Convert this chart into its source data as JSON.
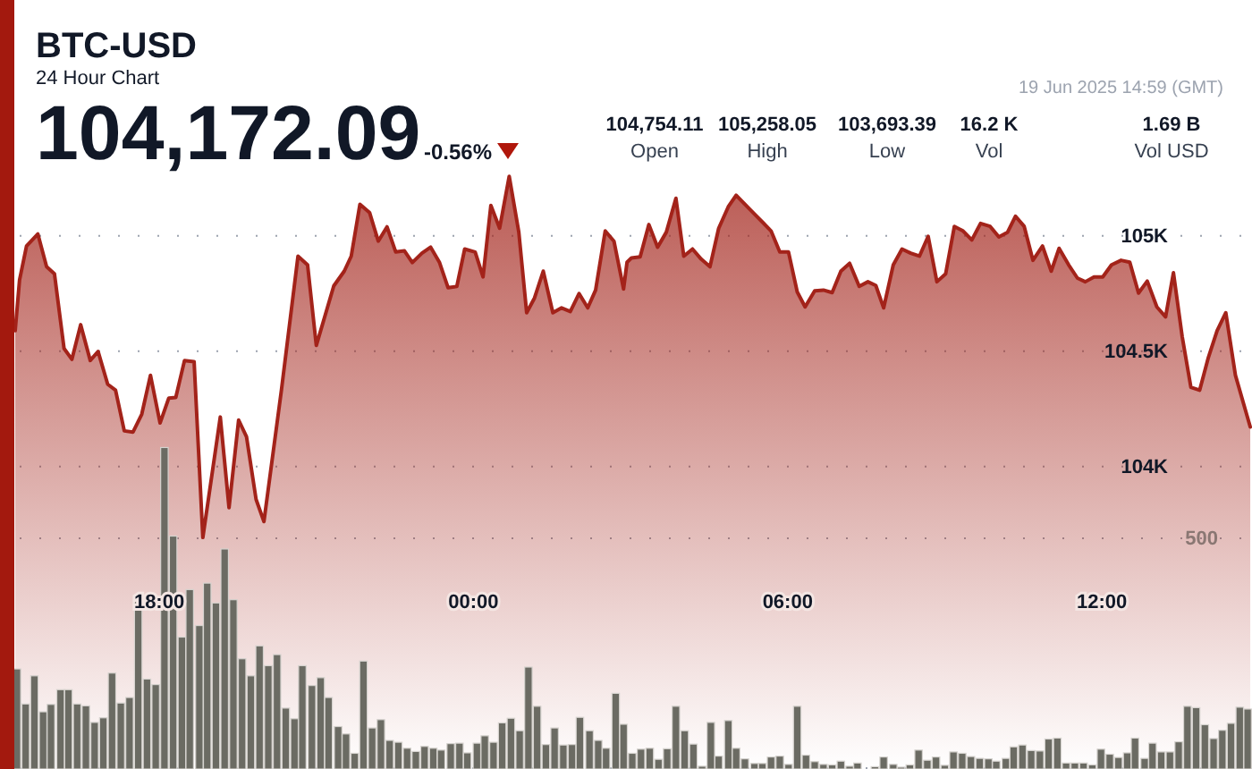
{
  "chart_data": {
    "type": "area",
    "title": "BTC-USD",
    "subtitle": "24 Hour Chart",
    "annotations": [
      "104,172.09",
      "-0.56%",
      "104,754.11",
      "Open",
      "105,258.05",
      "High",
      "103,693.39",
      "Low",
      "16.2 K",
      "Vol",
      "1.69 B",
      "Vol USD",
      "19 Jun 2025 14:59 (GMT)"
    ],
    "xlim": [
      "2025-06-18T15:14",
      "2025-06-19T14:52"
    ],
    "xticks": [
      {
        "value": "2025-06-18T18:00",
        "label": "18:00"
      },
      {
        "value": "2025-06-19T00:00",
        "label": "00:00"
      },
      {
        "value": "2025-06-19T06:00",
        "label": "06:00"
      },
      {
        "value": "2025-06-19T12:00",
        "label": "12:00"
      }
    ],
    "ylim": [
      102690,
      105340
    ],
    "yticks": [
      {
        "value": 104000,
        "label": "104K"
      },
      {
        "value": 104500,
        "label": "104.5K"
      },
      {
        "value": 105000,
        "label": "105K"
      }
    ],
    "y2lim": [
      0,
      1326
    ],
    "y2ticks": [
      {
        "value": 0,
        "label": null
      },
      500
    ],
    "grid": "y",
    "series": [
      {
        "color": "#a3231a",
        "x": [
          "2025-06-18T15:15",
          "2025-06-18T15:20",
          "2025-06-18T15:28",
          "2025-06-18T15:41",
          "2025-06-18T15:51",
          "2025-06-18T16:00",
          "2025-06-18T16:11",
          "2025-06-18T16:20",
          "2025-06-18T16:30",
          "2025-06-18T16:41",
          "2025-06-18T16:50",
          "2025-06-18T17:01",
          "2025-06-18T17:10",
          "2025-06-18T17:20",
          "2025-06-18T17:30",
          "2025-06-18T17:40",
          "2025-06-18T17:50",
          "2025-06-18T18:01",
          "2025-06-18T18:11",
          "2025-06-18T18:19",
          "2025-06-18T18:29",
          "2025-06-18T18:40",
          "2025-06-18T18:50",
          "2025-06-18T19:10",
          "2025-06-18T19:20",
          "2025-06-18T19:31",
          "2025-06-18T19:40",
          "2025-06-18T19:51",
          "2025-06-18T20:00",
          "2025-06-18T20:20",
          "2025-06-18T20:39",
          "2025-06-18T20:50",
          "2025-06-18T21:00",
          "2025-06-18T21:20",
          "2025-06-18T21:32",
          "2025-06-18T21:40",
          "2025-06-18T21:50",
          "2025-06-18T22:01",
          "2025-06-18T22:11",
          "2025-06-18T22:21",
          "2025-06-18T22:31",
          "2025-06-18T22:41",
          "2025-06-18T22:50",
          "2025-06-18T23:01",
          "2025-06-18T23:11",
          "2025-06-18T23:21",
          "2025-06-18T23:31",
          "2025-06-18T23:41",
          "2025-06-18T23:50",
          "2025-06-19T00:02",
          "2025-06-19T00:11",
          "2025-06-19T00:20",
          "2025-06-19T00:30",
          "2025-06-19T00:41",
          "2025-06-19T00:52",
          "2025-06-19T01:01",
          "2025-06-19T01:10",
          "2025-06-19T01:20",
          "2025-06-19T01:31",
          "2025-06-19T01:41",
          "2025-06-19T01:51",
          "2025-06-19T02:01",
          "2025-06-19T02:11",
          "2025-06-19T02:20",
          "2025-06-19T02:31",
          "2025-06-19T02:41",
          "2025-06-19T02:52",
          "2025-06-19T02:56",
          "2025-06-19T03:01",
          "2025-06-19T03:11",
          "2025-06-19T03:21",
          "2025-06-19T03:31",
          "2025-06-19T03:41",
          "2025-06-19T03:52",
          "2025-06-19T04:01",
          "2025-06-19T04:11",
          "2025-06-19T04:21",
          "2025-06-19T04:31",
          "2025-06-19T04:41",
          "2025-06-19T04:52",
          "2025-06-19T05:01",
          "2025-06-19T05:11",
          "2025-06-19T05:21",
          "2025-06-19T05:31",
          "2025-06-19T05:41",
          "2025-06-19T05:51",
          "2025-06-19T06:01",
          "2025-06-19T06:11",
          "2025-06-19T06:20",
          "2025-06-19T06:31",
          "2025-06-19T06:41",
          "2025-06-19T06:51",
          "2025-06-19T07:01",
          "2025-06-19T07:11",
          "2025-06-19T07:22",
          "2025-06-19T07:32",
          "2025-06-19T07:41",
          "2025-06-19T07:50",
          "2025-06-19T08:01",
          "2025-06-19T08:11",
          "2025-06-19T08:21",
          "2025-06-19T08:31",
          "2025-06-19T08:41",
          "2025-06-19T08:51",
          "2025-06-19T09:01",
          "2025-06-19T09:11",
          "2025-06-19T09:21",
          "2025-06-19T09:31",
          "2025-06-19T09:41",
          "2025-06-19T09:52",
          "2025-06-19T10:02",
          "2025-06-19T10:12",
          "2025-06-19T10:21",
          "2025-06-19T10:31",
          "2025-06-19T10:41",
          "2025-06-19T10:52",
          "2025-06-19T11:02",
          "2025-06-19T11:11",
          "2025-06-19T11:22",
          "2025-06-19T11:32",
          "2025-06-19T11:41",
          "2025-06-19T11:51",
          "2025-06-19T12:01",
          "2025-06-19T12:11",
          "2025-06-19T12:22",
          "2025-06-19T12:32",
          "2025-06-19T12:42",
          "2025-06-19T12:52",
          "2025-06-19T13:03",
          "2025-06-19T13:13",
          "2025-06-19T13:22",
          "2025-06-19T13:32",
          "2025-06-19T13:42",
          "2025-06-19T13:52",
          "2025-06-19T14:02",
          "2025-06-19T14:12",
          "2025-06-19T14:22",
          "2025-06-19T14:33",
          "2025-06-19T14:50"
        ],
        "values": [
          104589,
          104809,
          104956,
          105008,
          104866,
          104835,
          104512,
          104465,
          104615,
          104460,
          104499,
          104357,
          104331,
          104155,
          104150,
          104227,
          104396,
          104189,
          104297,
          104300,
          104460,
          104455,
          103693,
          104215,
          103822,
          104202,
          104130,
          103858,
          103762,
          104331,
          104912,
          104874,
          104525,
          104783,
          104847,
          104912,
          105137,
          105101,
          104977,
          105039,
          104930,
          104935,
          104884,
          104925,
          104951,
          104886,
          104775,
          104781,
          104943,
          104930,
          104822,
          105132,
          105033,
          105258,
          105016,
          104667,
          104731,
          104847,
          104667,
          104688,
          104672,
          104750,
          104688,
          104765,
          105021,
          104977,
          104770,
          104886,
          104904,
          104909,
          105049,
          104951,
          105016,
          105163,
          104912,
          104943,
          104899,
          104866,
          105033,
          105126,
          105176,
          105137,
          105098,
          105060,
          105021,
          104930,
          104930,
          104757,
          104692,
          104762,
          104765,
          104754,
          104847,
          104881,
          104781,
          104801,
          104785,
          104688,
          104874,
          104943,
          104925,
          104912,
          104998,
          104801,
          104835,
          105041,
          105021,
          104982,
          105054,
          105041,
          104995,
          105016,
          105085,
          105041,
          104894,
          104956,
          104847,
          104946,
          104874,
          104817,
          104801,
          104822,
          104822,
          104874,
          104894,
          104886,
          104752,
          104804,
          104692,
          104649,
          104840,
          104564,
          104344,
          104331,
          104473,
          104589,
          104667,
          104396,
          104172
        ]
      },
      {
        "type": "bar",
        "axis": "y2",
        "color": "#6b6b63",
        "x": [
          "2025-06-18T15:17",
          "2025-06-18T15:27",
          "2025-06-18T15:37",
          "2025-06-18T15:47",
          "2025-06-18T15:56",
          "2025-06-18T16:07",
          "2025-06-18T16:16",
          "2025-06-18T16:26",
          "2025-06-18T16:36",
          "2025-06-18T16:46",
          "2025-06-18T16:56",
          "2025-06-18T17:06",
          "2025-06-18T17:16",
          "2025-06-18T17:26",
          "2025-06-18T17:36",
          "2025-06-18T17:46",
          "2025-06-18T17:56",
          "2025-06-18T18:06",
          "2025-06-18T18:16",
          "2025-06-18T18:26",
          "2025-06-18T18:35",
          "2025-06-18T18:46",
          "2025-06-18T18:55",
          "2025-06-18T19:05",
          "2025-06-18T19:15",
          "2025-06-18T19:25",
          "2025-06-18T19:35",
          "2025-06-18T19:45",
          "2025-06-18T19:55",
          "2025-06-18T20:05",
          "2025-06-18T20:15",
          "2025-06-18T20:25",
          "2025-06-18T20:35",
          "2025-06-18T20:44",
          "2025-06-18T20:55",
          "2025-06-18T21:05",
          "2025-06-18T21:14",
          "2025-06-18T21:25",
          "2025-06-18T21:34",
          "2025-06-18T21:44",
          "2025-06-18T21:54",
          "2025-06-18T22:04",
          "2025-06-18T22:14",
          "2025-06-18T22:24",
          "2025-06-18T22:34",
          "2025-06-18T22:44",
          "2025-06-18T22:54",
          "2025-06-18T23:04",
          "2025-06-18T23:14",
          "2025-06-18T23:23",
          "2025-06-18T23:34",
          "2025-06-18T23:44",
          "2025-06-18T23:53",
          "2025-06-19T00:04",
          "2025-06-19T00:13",
          "2025-06-19T00:23",
          "2025-06-19T00:33",
          "2025-06-19T00:43",
          "2025-06-19T00:53",
          "2025-06-19T01:03",
          "2025-06-19T01:13",
          "2025-06-19T01:23",
          "2025-06-19T01:33",
          "2025-06-19T01:43",
          "2025-06-19T01:53",
          "2025-06-19T02:02",
          "2025-06-19T02:13",
          "2025-06-19T02:23",
          "2025-06-19T02:32",
          "2025-06-19T02:43",
          "2025-06-19T02:52",
          "2025-06-19T03:02",
          "2025-06-19T03:12",
          "2025-06-19T03:22",
          "2025-06-19T03:32",
          "2025-06-19T03:42",
          "2025-06-19T03:52",
          "2025-06-19T04:02",
          "2025-06-19T04:12",
          "2025-06-19T04:22",
          "2025-06-19T04:32",
          "2025-06-19T04:41",
          "2025-06-19T04:52",
          "2025-06-19T05:01",
          "2025-06-19T05:11",
          "2025-06-19T05:22",
          "2025-06-19T05:31",
          "2025-06-19T05:41",
          "2025-06-19T05:51",
          "2025-06-19T06:01",
          "2025-06-19T06:11",
          "2025-06-19T06:21",
          "2025-06-19T06:31",
          "2025-06-19T06:41",
          "2025-06-19T06:51",
          "2025-06-19T07:01",
          "2025-06-19T07:11",
          "2025-06-19T07:20",
          "2025-06-19T07:31",
          "2025-06-19T07:40",
          "2025-06-19T07:50",
          "2025-06-19T08:01",
          "2025-06-19T08:10",
          "2025-06-19T08:20",
          "2025-06-19T08:30",
          "2025-06-19T08:40",
          "2025-06-19T08:50",
          "2025-06-19T09:00",
          "2025-06-19T09:10",
          "2025-06-19T09:20",
          "2025-06-19T09:30",
          "2025-06-19T09:40",
          "2025-06-19T09:50",
          "2025-06-19T09:59",
          "2025-06-19T10:10",
          "2025-06-19T10:19",
          "2025-06-19T10:29",
          "2025-06-19T10:39",
          "2025-06-19T10:49",
          "2025-06-19T10:59",
          "2025-06-19T11:09",
          "2025-06-19T11:19",
          "2025-06-19T11:29",
          "2025-06-19T11:39",
          "2025-06-19T11:49",
          "2025-06-19T11:59",
          "2025-06-19T12:09",
          "2025-06-19T12:19",
          "2025-06-19T12:29",
          "2025-06-19T12:38",
          "2025-06-19T12:49",
          "2025-06-19T12:58",
          "2025-06-19T13:08",
          "2025-06-19T13:18",
          "2025-06-19T13:28",
          "2025-06-19T13:38",
          "2025-06-19T13:48",
          "2025-06-19T13:58",
          "2025-06-19T14:08",
          "2025-06-19T14:18",
          "2025-06-19T14:28",
          "2025-06-19T14:38",
          "2025-06-19T14:47"
        ],
        "values": [
          217,
          141,
          202,
          124,
          140,
          172,
          172,
          141,
          137,
          101,
          111,
          208,
          143,
          155,
          373,
          195,
          183,
          697,
          505,
          286,
          389,
          311,
          403,
          360,
          477,
          367,
          239,
          202,
          267,
          224,
          248,
          132,
          109,
          224,
          181,
          198,
          155,
          92,
          76,
          34,
          234,
          89,
          107,
          62,
          58,
          45,
          38,
          49,
          45,
          41,
          55,
          56,
          35,
          56,
          72,
          58,
          100,
          110,
          83,
          221,
          136,
          53,
          89,
          52,
          53,
          112,
          83,
          62,
          45,
          164,
          97,
          34,
          43,
          45,
          21,
          44,
          136,
          83,
          54,
          6,
          101,
          28,
          105,
          45,
          22,
          12,
          12,
          26,
          28,
          10,
          136,
          30,
          16,
          10,
          9,
          17,
          6,
          13,
          null,
          5,
          26,
          10,
          4,
          9,
          41,
          19,
          26,
          8,
          37,
          34,
          27,
          23,
          22,
          17,
          23,
          48,
          52,
          40,
          39,
          65,
          67,
          13,
          13,
          13,
          9,
          43,
          32,
          25,
          35,
          67,
          23,
          56,
          37,
          37,
          59,
          136,
          133,
          96,
          66,
          84,
          99,
          134,
          130
        ]
      }
    ]
  }
}
